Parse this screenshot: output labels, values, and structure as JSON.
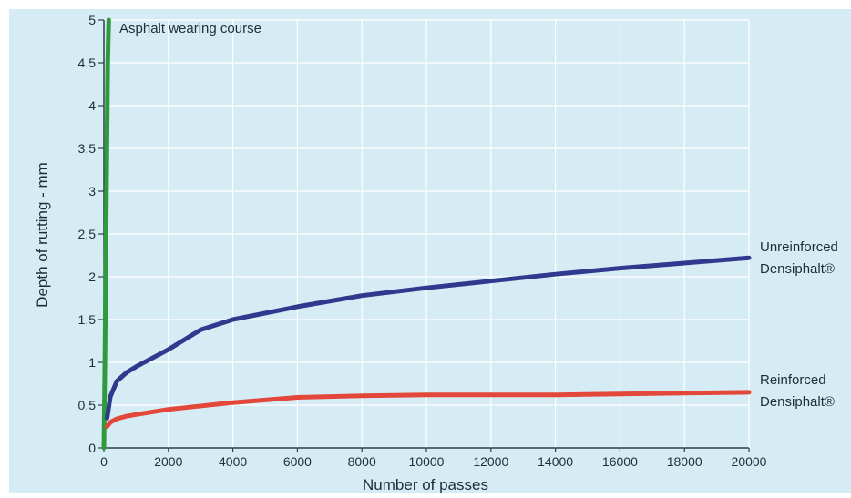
{
  "colors": {
    "panel": "#d6ecf5",
    "grid": "#ffffff",
    "axis": "#2f3f4a",
    "text": "#1f2d36",
    "asphalt": "#2f9a3e",
    "unreinforced": "#2f3a8f",
    "reinforced": "#e2473a"
  },
  "chart_data": {
    "type": "line",
    "title": "",
    "xlabel": "Number of passes",
    "ylabel": "Depth of rutting - mm",
    "xlim": [
      0,
      20000
    ],
    "ylim": [
      0,
      5
    ],
    "grid": true,
    "x_ticks": [
      0,
      2000,
      4000,
      6000,
      8000,
      10000,
      12000,
      14000,
      16000,
      18000,
      20000
    ],
    "x_tick_labels": [
      "0",
      "2000",
      "4000",
      "6000",
      "8000",
      "10000",
      "12000",
      "14000",
      "16000",
      "18000",
      "20000"
    ],
    "y_ticks": [
      0,
      0.5,
      1,
      1.5,
      2,
      2.5,
      3,
      3.5,
      4,
      4.5,
      5
    ],
    "y_tick_labels": [
      "0",
      "0,5",
      "1",
      "1,5",
      "2",
      "2,5",
      "3",
      "3,5",
      "4",
      "4,5",
      "5"
    ],
    "series": [
      {
        "name": "Asphalt wearing course",
        "label_lines": [
          "Asphalt wearing course"
        ],
        "color_key": "asphalt",
        "x": [
          0,
          30,
          60,
          90,
          120,
          150
        ],
        "y": [
          0,
          1.0,
          2.2,
          3.4,
          4.5,
          5.0
        ]
      },
      {
        "name": "Unreinforced Densiphalt®",
        "label_lines": [
          "Unreinforced",
          "Densiphalt®"
        ],
        "color_key": "unreinforced",
        "x": [
          100,
          200,
          400,
          700,
          1000,
          1500,
          2000,
          3000,
          4000,
          6000,
          8000,
          10000,
          12000,
          14000,
          16000,
          18000,
          20000
        ],
        "y": [
          0.35,
          0.6,
          0.78,
          0.88,
          0.95,
          1.05,
          1.15,
          1.38,
          1.5,
          1.65,
          1.78,
          1.87,
          1.95,
          2.03,
          2.1,
          2.16,
          2.22
        ]
      },
      {
        "name": "Reinforced Densiphalt®",
        "label_lines": [
          "Reinforced",
          "Densiphalt®"
        ],
        "color_key": "reinforced",
        "x": [
          100,
          200,
          400,
          700,
          1000,
          2000,
          4000,
          6000,
          8000,
          10000,
          12000,
          14000,
          16000,
          18000,
          20000
        ],
        "y": [
          0.25,
          0.3,
          0.34,
          0.37,
          0.39,
          0.45,
          0.53,
          0.59,
          0.61,
          0.62,
          0.62,
          0.62,
          0.63,
          0.64,
          0.65
        ]
      }
    ]
  }
}
